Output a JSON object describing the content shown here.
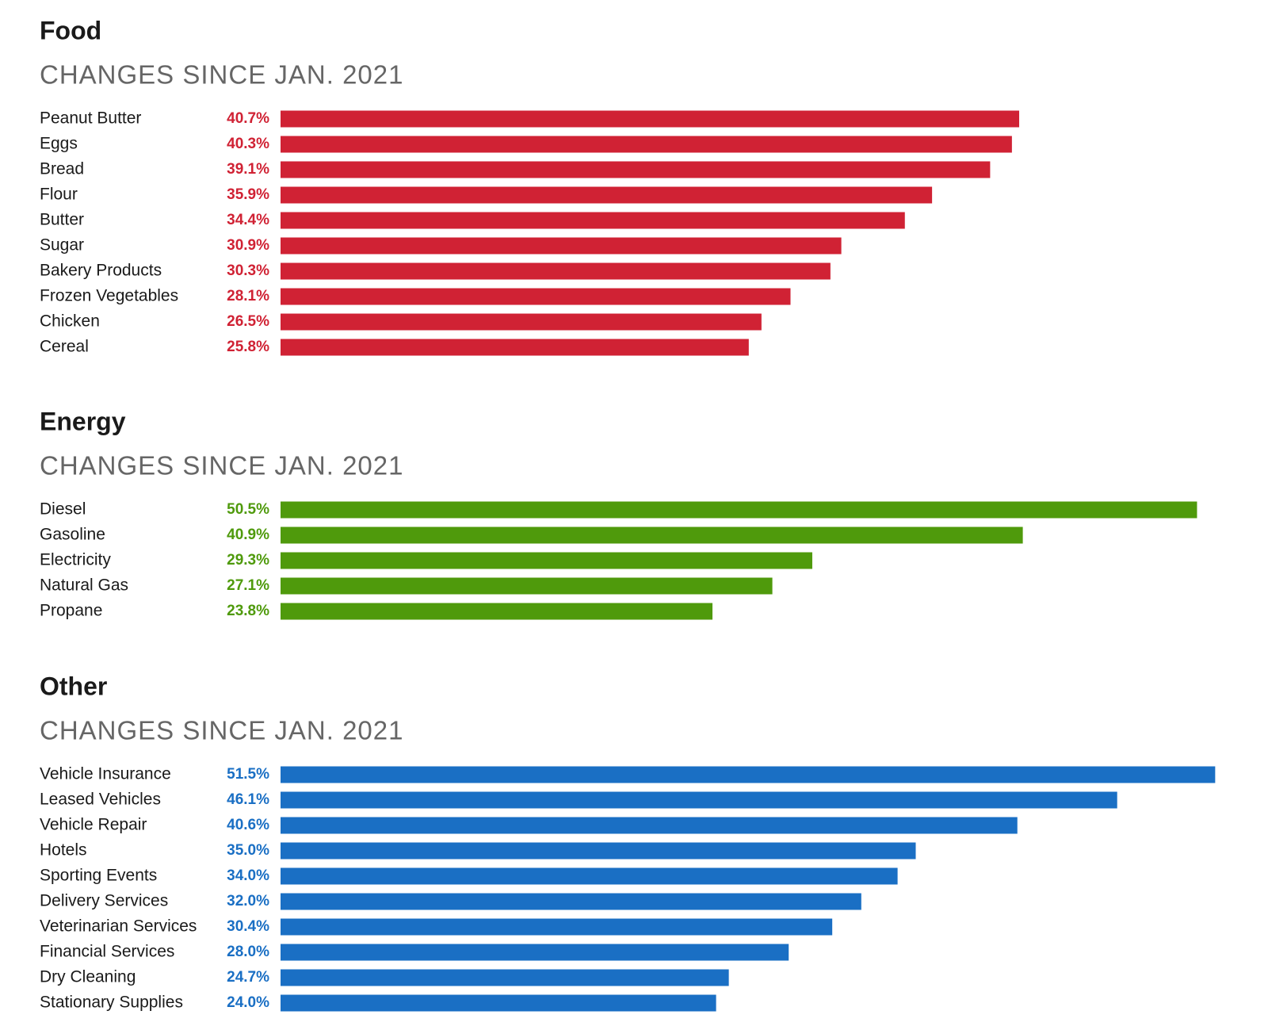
{
  "chart_data": [
    {
      "type": "bar",
      "orientation": "horizontal",
      "title": "Food",
      "subtitle": "CHANGES SINCE JAN. 2021",
      "color": "#d02234",
      "categories": [
        "Peanut Butter",
        "Eggs",
        "Bread",
        "Flour",
        "Butter",
        "Sugar",
        "Bakery Products",
        "Frozen Vegetables",
        "Chicken",
        "Cereal"
      ],
      "values": [
        40.7,
        40.3,
        39.1,
        35.9,
        34.4,
        30.9,
        30.3,
        28.1,
        26.5,
        25.8
      ],
      "value_labels": [
        "40.7%",
        "40.3%",
        "39.1%",
        "35.9%",
        "34.4%",
        "30.9%",
        "30.3%",
        "28.1%",
        "26.5%",
        "25.8%"
      ]
    },
    {
      "type": "bar",
      "orientation": "horizontal",
      "title": "Energy",
      "subtitle": "CHANGES SINCE JAN. 2021",
      "color": "#4f9a0c",
      "categories": [
        "Diesel",
        "Gasoline",
        "Electricity",
        "Natural Gas",
        "Propane"
      ],
      "values": [
        50.5,
        40.9,
        29.3,
        27.1,
        23.8
      ],
      "value_labels": [
        "50.5%",
        "40.9%",
        "29.3%",
        "27.1%",
        "23.8%"
      ]
    },
    {
      "type": "bar",
      "orientation": "horizontal",
      "title": "Other",
      "subtitle": "CHANGES SINCE JAN. 2021",
      "color": "#1a6fc4",
      "categories": [
        "Vehicle Insurance",
        "Leased Vehicles",
        "Vehicle Repair",
        "Hotels",
        "Sporting Events",
        "Delivery Services",
        "Veterinarian Services",
        "Financial Services",
        "Dry Cleaning",
        "Stationary Supplies"
      ],
      "values": [
        51.5,
        46.1,
        40.6,
        35.0,
        34.0,
        32.0,
        30.4,
        28.0,
        24.7,
        24.0
      ],
      "value_labels": [
        "51.5%",
        "46.1%",
        "40.6%",
        "35.0%",
        "34.0%",
        "32.0%",
        "30.4%",
        "28.0%",
        "24.7%",
        "24.0%"
      ]
    }
  ]
}
